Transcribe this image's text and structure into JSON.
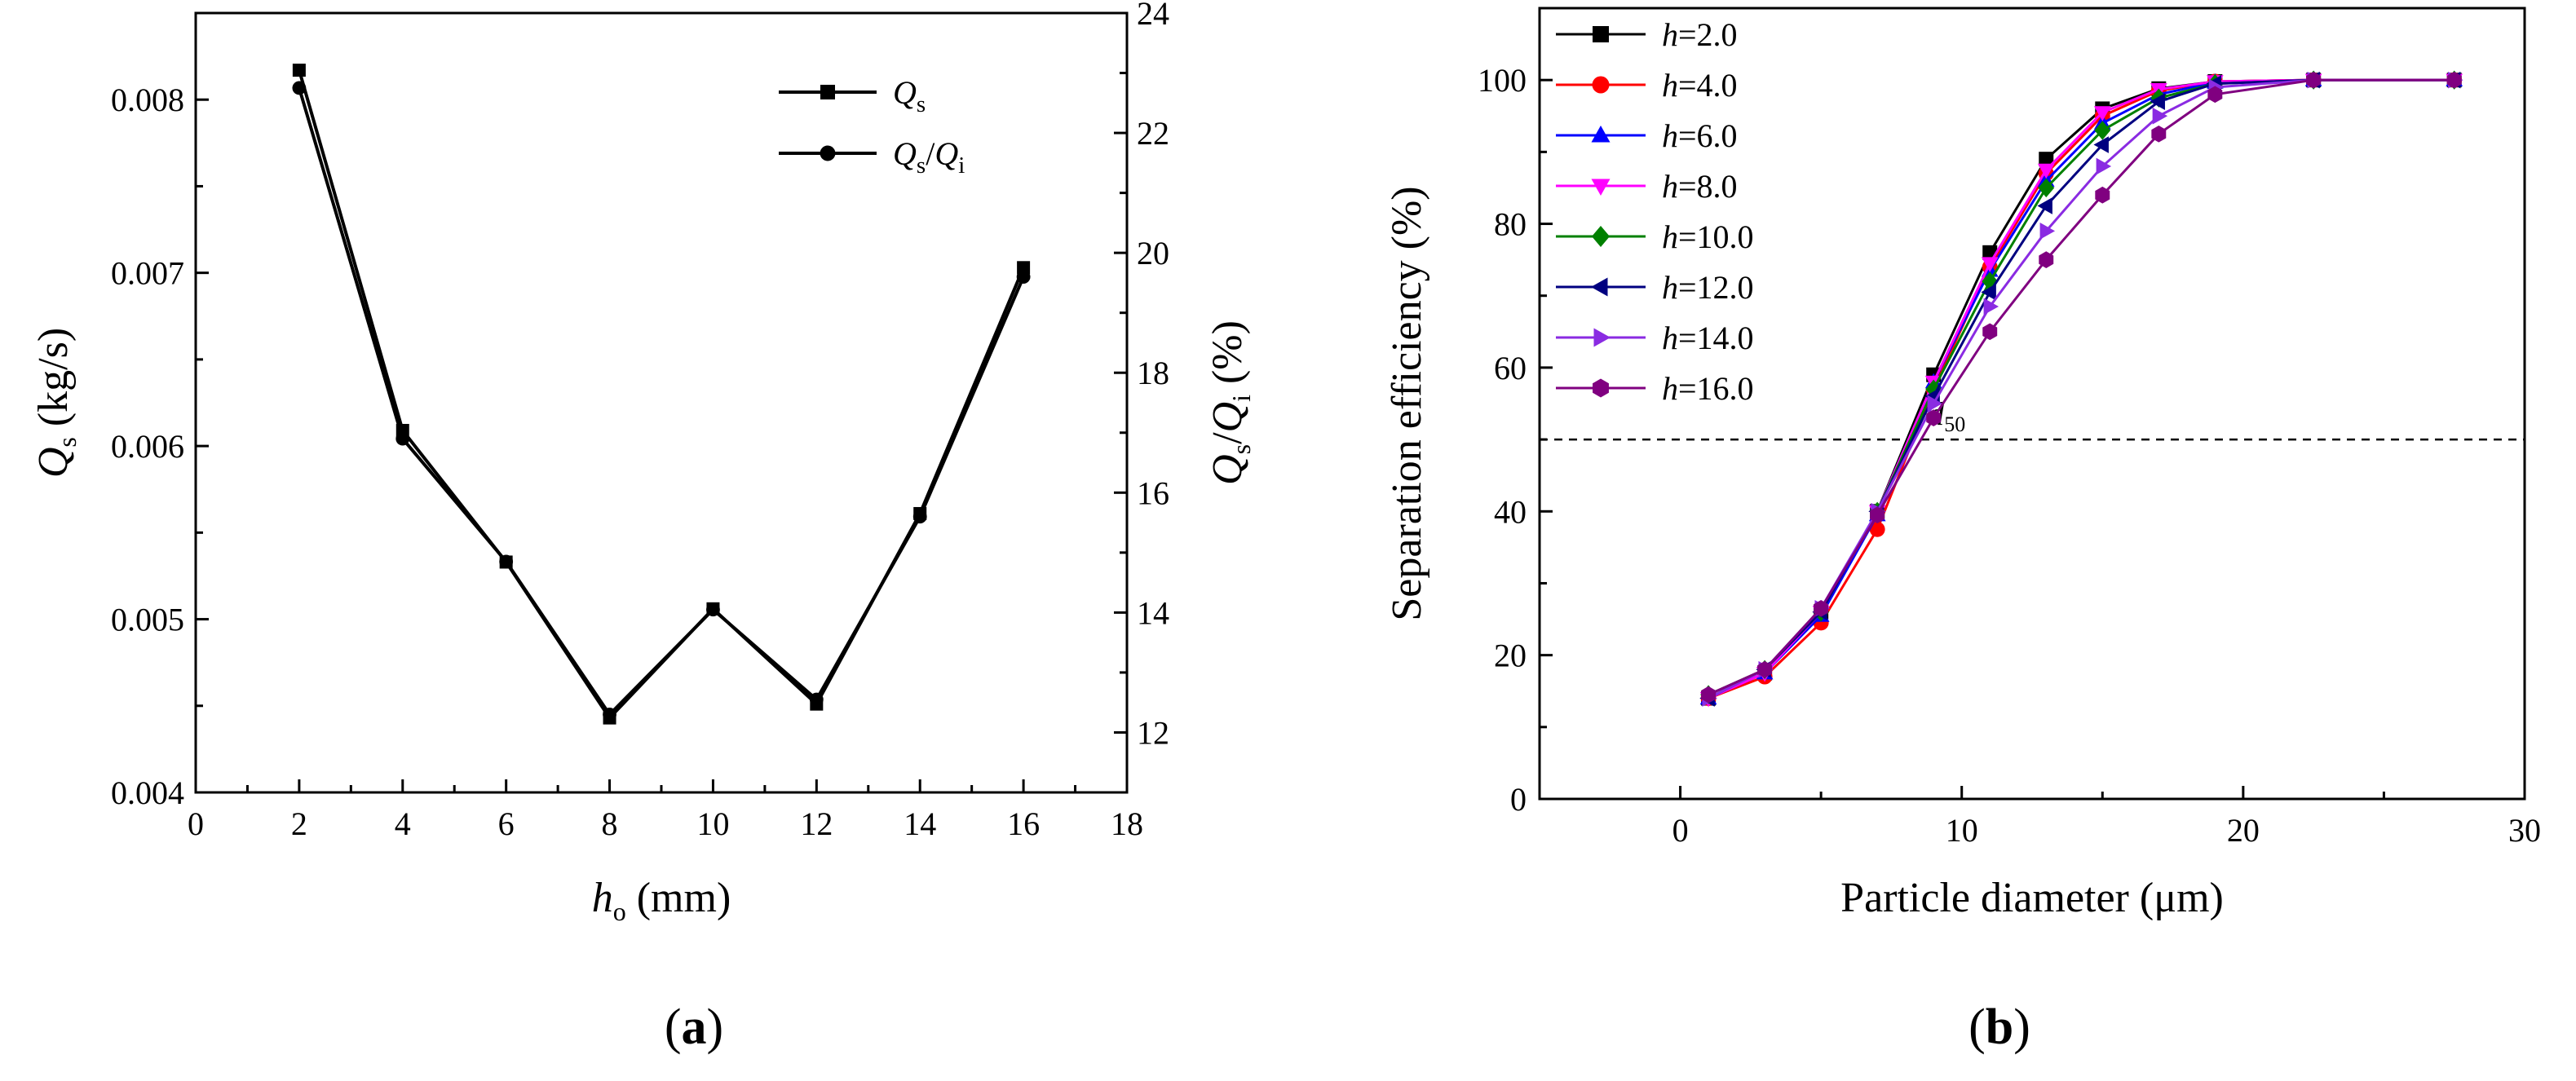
{
  "chart_data": [
    {
      "panel": "a",
      "type": "line",
      "caption": {
        "open": "(",
        "letter": "a",
        "close": ")"
      },
      "x": [
        2,
        4,
        6,
        8,
        10,
        12,
        14,
        16
      ],
      "xlim": [
        0,
        18
      ],
      "xticks": [
        0,
        2,
        4,
        6,
        8,
        10,
        12,
        14,
        16,
        18
      ],
      "xlabel": {
        "symbol": "h",
        "sub": "o",
        "unit": " (mm)"
      },
      "ylim": [
        0.004,
        0.0085
      ],
      "yticks": [
        "0.004",
        "0.005",
        "0.006",
        "0.007",
        "0.008"
      ],
      "ylabel": {
        "symbol": "Q",
        "sub": "s",
        "unit": " (kg/s)"
      },
      "y2lim": [
        11,
        24
      ],
      "y2ticks": [
        12,
        14,
        16,
        18,
        20,
        22,
        24
      ],
      "y2label": {
        "symbol": "Q",
        "sub": "s",
        "slash": "/",
        "symbol2": "Q",
        "sub2": "i",
        "unit": " (%)"
      },
      "legend_position": "top-right",
      "series": [
        {
          "name": "Qs",
          "marker": "square",
          "axis": "left",
          "color": "#000000",
          "legend": {
            "symbol": "Q",
            "sub": "s"
          },
          "values": [
            0.00817,
            0.00609,
            0.00533,
            0.00443,
            0.00506,
            0.00451,
            0.00561,
            0.00703
          ]
        },
        {
          "name": "Qs/Qi",
          "marker": "circle",
          "axis": "right",
          "color": "#000000",
          "legend": {
            "symbol": "Q",
            "sub": "s",
            "slash": "/",
            "symbol2": "Q",
            "sub2": "i"
          },
          "values": [
            22.75,
            16.9,
            14.85,
            12.3,
            14.05,
            12.55,
            15.6,
            19.6
          ]
        }
      ]
    },
    {
      "panel": "b",
      "type": "line",
      "caption": {
        "open": "(",
        "letter": "b",
        "close": ")"
      },
      "xlim": [
        -5,
        30
      ],
      "xticks": [
        0,
        10,
        20,
        30
      ],
      "xlabel": "Particle diameter (μm)",
      "ylim": [
        0,
        110
      ],
      "yticks": [
        0,
        20,
        40,
        60,
        80,
        100
      ],
      "ylabel": "Separation efficiency (%)",
      "legend_position": "top-left",
      "reference_line": {
        "y": 50,
        "style": "dashed",
        "label": {
          "symbol": "d",
          "sub": "50"
        }
      },
      "x": [
        1,
        3,
        5,
        7,
        9,
        11,
        13,
        15,
        17,
        19,
        22.5,
        27.5
      ],
      "series": [
        {
          "name": "h=2.0",
          "prefix": "h",
          "value": "=2.0",
          "color": "#000000",
          "marker": "square",
          "values": [
            14,
            17.5,
            26,
            40,
            59,
            76,
            89,
            96,
            98.8,
            99.8,
            100,
            100
          ]
        },
        {
          "name": "h=4.0",
          "prefix": "h",
          "value": "=4.0",
          "color": "#ff0000",
          "marker": "circle",
          "values": [
            14,
            17,
            24.5,
            37.5,
            57,
            74,
            87,
            95,
            98.5,
            99.8,
            100,
            100
          ]
        },
        {
          "name": "h=6.0",
          "prefix": "h",
          "value": "=6.0",
          "color": "#0000ff",
          "marker": "triangle-up",
          "values": [
            14,
            17.5,
            25.5,
            39.5,
            58,
            73.5,
            86,
            94,
            98,
            99.7,
            100,
            100
          ]
        },
        {
          "name": "h=8.0",
          "prefix": "h",
          "value": "=8.0",
          "color": "#ff00ff",
          "marker": "triangle-down",
          "values": [
            14,
            17.5,
            26,
            40,
            58,
            74.5,
            87.5,
            95.5,
            98.7,
            99.8,
            100,
            100
          ]
        },
        {
          "name": "h=10.0",
          "prefix": "h",
          "value": "=10.0",
          "color": "#008000",
          "marker": "diamond",
          "values": [
            14.5,
            18,
            26,
            40,
            57,
            72,
            85,
            93,
            97.5,
            99.5,
            100,
            100
          ]
        },
        {
          "name": "h=12.0",
          "prefix": "h",
          "value": "=12.0",
          "color": "#000080",
          "marker": "triangle-left",
          "values": [
            14,
            18,
            26,
            40,
            56,
            70.5,
            82.5,
            91,
            97,
            99.5,
            100,
            100
          ]
        },
        {
          "name": "h=14.0",
          "prefix": "h",
          "value": "=14.0",
          "color": "#8a2be2",
          "marker": "triangle-right",
          "values": [
            14,
            18,
            26.5,
            40,
            55,
            68.5,
            79,
            88,
            95,
            99,
            100,
            100
          ]
        },
        {
          "name": "h=16.0",
          "prefix": "h",
          "value": "=16.0",
          "color": "#800080",
          "marker": "hexagon",
          "values": [
            14.5,
            18,
            26.5,
            39.5,
            53,
            65,
            75,
            84,
            92.5,
            98,
            100,
            100
          ]
        }
      ]
    }
  ]
}
